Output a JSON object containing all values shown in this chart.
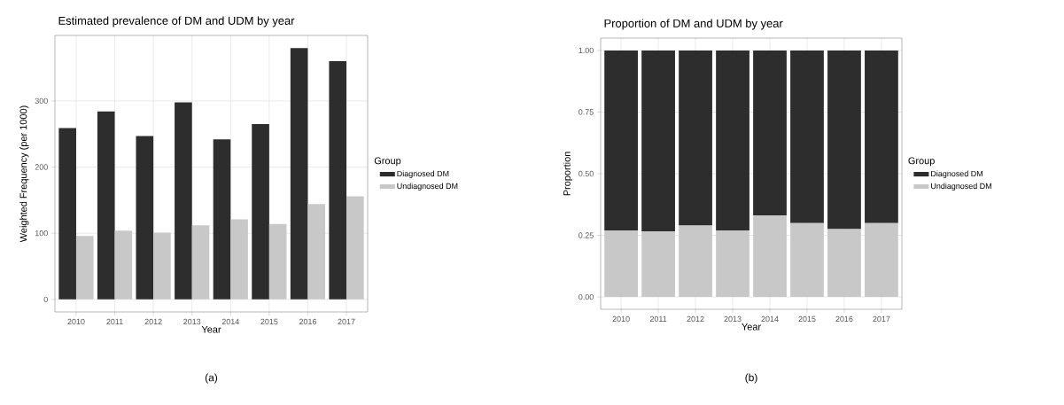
{
  "chart_data": [
    {
      "type": "bar",
      "title": "Estimated prevalence of DM and UDM by year",
      "xlabel": "Year",
      "ylabel": "Weighted Frequency (per 1000)",
      "legend_title": "Group",
      "legend": "right",
      "grid": true,
      "categories": [
        "2010",
        "2011",
        "2012",
        "2013",
        "2014",
        "2015",
        "2016",
        "2017"
      ],
      "ylim": [
        -19,
        399
      ],
      "yticks": [
        0,
        100,
        200,
        300
      ],
      "series": [
        {
          "name": "Diagnosed DM",
          "color": "#2d2d2d",
          "values": [
            259,
            284,
            247,
            298,
            242,
            265,
            380,
            360
          ]
        },
        {
          "name": "Undiagnosed DM",
          "color": "#c8c8c8",
          "values": [
            96,
            104,
            101,
            112,
            121,
            114,
            144,
            156
          ]
        }
      ],
      "annotations": [
        "(a)"
      ]
    },
    {
      "type": "bar",
      "stacked": true,
      "title": "Proportion of DM and UDM by year",
      "xlabel": "Year",
      "ylabel": "Proportion",
      "legend_title": "Group",
      "legend": "right",
      "grid": true,
      "categories": [
        "2010",
        "2011",
        "2012",
        "2013",
        "2014",
        "2015",
        "2016",
        "2017"
      ],
      "ylim": [
        -0.05,
        1.05
      ],
      "yticks": [
        {
          "value": 0,
          "label": "0.00"
        },
        {
          "value": 0.25,
          "label": "0.25"
        },
        {
          "value": 0.5,
          "label": "0.50"
        },
        {
          "value": 0.75,
          "label": "0.75"
        },
        {
          "value": 1,
          "label": "1.00"
        }
      ],
      "series": [
        {
          "name": "Undiagnosed DM",
          "color": "#c8c8c8",
          "values": [
            0.27,
            0.265,
            0.29,
            0.27,
            0.33,
            0.3,
            0.275,
            0.3
          ]
        },
        {
          "name": "Diagnosed DM",
          "color": "#2d2d2d",
          "values": [
            0.73,
            0.735,
            0.71,
            0.73,
            0.67,
            0.7,
            0.725,
            0.7
          ]
        }
      ],
      "annotations": [
        "(b)"
      ]
    }
  ]
}
